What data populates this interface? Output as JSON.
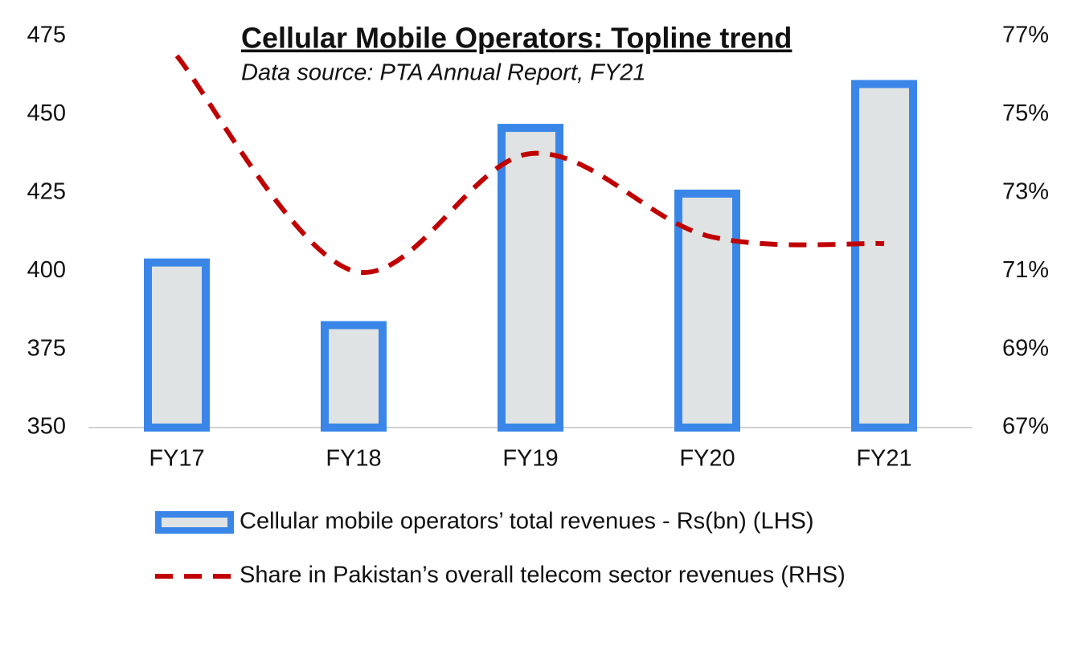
{
  "chart_data": {
    "type": "bar",
    "title": "Cellular Mobile Operators: Topline trend",
    "subtitle": "Data source: PTA Annual Report, FY21",
    "categories": [
      "FY17",
      "FY18",
      "FY19",
      "FY20",
      "FY21"
    ],
    "series": [
      {
        "name": "Cellular mobile operators’ total revenues - Rs(bn) (LHS)",
        "type": "bar",
        "color": "#3a86e8",
        "fill": "#e0e3e3",
        "values": [
          404,
          384,
          447,
          426,
          461
        ]
      },
      {
        "name": "Share in Pakistan’s overall telecom sector revenues (RHS)",
        "type": "line",
        "axis": "y2",
        "color": "#c00000",
        "values": [
          76.5,
          71.0,
          74.0,
          71.9,
          71.7
        ]
      }
    ],
    "ylim": [
      350,
      475
    ],
    "yticks": [
      350,
      375,
      400,
      425,
      450,
      475
    ],
    "y2lim": [
      67,
      77
    ],
    "y2ticks": [
      {
        "value": 67,
        "label": "67%"
      },
      {
        "value": 69,
        "label": "69%"
      },
      {
        "value": 71,
        "label": "71%"
      },
      {
        "value": 73,
        "label": "73%"
      },
      {
        "value": 75,
        "label": "75%"
      },
      {
        "value": 77,
        "label": "77%"
      }
    ],
    "grid": false
  }
}
